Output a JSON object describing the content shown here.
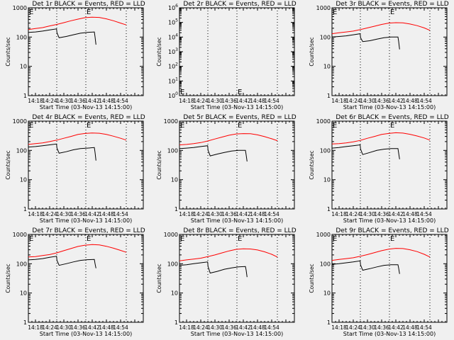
{
  "chart_data": [
    {
      "type": "line",
      "title": "Det 1r BLACK = Events, RED = LLD",
      "xlabel": "Start Time (03-Nov-13 14:15:00)",
      "ylabel": "Counts/sec",
      "yscale": "log",
      "ylim": [
        1,
        1000
      ],
      "ytick_labels": [
        "1",
        "10",
        "100",
        "1000"
      ],
      "xtick_labels": [
        "14:18",
        "14:24",
        "14:30",
        "14:36",
        "14:42",
        "14:48",
        "14:54"
      ],
      "xlim_minutes": [
        0,
        48.6
      ],
      "vlines_minutes": [
        12,
        24.3,
        41.4
      ],
      "markers": [
        {
          "label": "E",
          "x_min": 0,
          "y": 1000
        },
        {
          "label": "E",
          "x_min": 24.3,
          "y": 1000
        }
      ],
      "series": [
        {
          "name": "LLD",
          "color": "#ff0000",
          "x": [
            0,
            3,
            6,
            9,
            12,
            15,
            18,
            21,
            24,
            27,
            30,
            33,
            36,
            39,
            41.4
          ],
          "values": [
            180,
            195,
            210,
            240,
            270,
            310,
            360,
            410,
            460,
            480,
            470,
            420,
            360,
            300,
            260
          ]
        },
        {
          "name": "Events",
          "color": "#000000",
          "x": [
            0,
            3,
            6,
            9,
            11.9,
            12.1,
            13,
            16,
            19,
            22,
            25,
            27.9,
            28.2,
            28.6
          ],
          "values": [
            145,
            150,
            160,
            175,
            190,
            140,
            95,
            105,
            120,
            135,
            145,
            150,
            100,
            55
          ]
        }
      ]
    },
    {
      "type": "line",
      "title": "Det 2r BLACK = Events, RED = LLD",
      "xlabel": "Start Time (03-Nov-13 14:15:00)",
      "ylabel": "Counts/sec",
      "yscale": "log",
      "ylim": [
        1,
        1000000
      ],
      "ytick_labels": [
        "10^0",
        "10^1",
        "10^2",
        "10^3",
        "10^4",
        "10^5",
        "10^6"
      ],
      "xtick_labels": [
        "14:18",
        "14:24",
        "14:30",
        "14:36",
        "14:42",
        "14:48",
        "14:54"
      ],
      "xlim_minutes": [
        0,
        48.6
      ],
      "vlines_minutes": [
        12,
        24.3,
        41.4
      ],
      "markers": [
        {
          "label": "E",
          "x_min": 0,
          "y": 1.5
        },
        {
          "label": "E",
          "x_min": 24.3,
          "y": 1.5
        }
      ],
      "series": []
    },
    {
      "type": "line",
      "title": "Det 3r BLACK = Events, RED = LLD",
      "xlabel": "Start Time (03-Nov-13 14:15:00)",
      "ylabel": "Counts/sec",
      "yscale": "log",
      "ylim": [
        1,
        1000
      ],
      "ytick_labels": [
        "1",
        "10",
        "100",
        "1000"
      ],
      "xtick_labels": [
        "14:18",
        "14:24",
        "14:30",
        "14:36",
        "14:42",
        "14:48",
        "14:54"
      ],
      "xlim_minutes": [
        0,
        48.6
      ],
      "vlines_minutes": [
        12,
        24.3,
        41.4
      ],
      "markers": [
        {
          "label": "E",
          "x_min": 0,
          "y": 1000
        },
        {
          "label": "E",
          "x_min": 24.3,
          "y": 1000
        }
      ],
      "series": [
        {
          "name": "LLD",
          "color": "#ff0000",
          "x": [
            0,
            3,
            6,
            9,
            12,
            15,
            18,
            21,
            24,
            27,
            30,
            33,
            36,
            39,
            41.4
          ],
          "values": [
            130,
            140,
            150,
            160,
            180,
            205,
            235,
            270,
            300,
            310,
            305,
            280,
            245,
            205,
            170
          ]
        },
        {
          "name": "Events",
          "color": "#000000",
          "x": [
            0,
            3,
            6,
            9,
            11.9,
            12.1,
            13,
            16,
            19,
            22,
            25,
            27.9,
            28.2,
            28.6
          ],
          "values": [
            100,
            105,
            110,
            120,
            130,
            95,
            70,
            75,
            85,
            95,
            100,
            100,
            70,
            38
          ]
        }
      ]
    },
    {
      "type": "line",
      "title": "Det 4r BLACK = Events, RED = LLD",
      "xlabel": "Start Time (03-Nov-13 14:15:00)",
      "ylabel": "Counts/sec",
      "yscale": "log",
      "ylim": [
        1,
        1000
      ],
      "ytick_labels": [
        "1",
        "10",
        "100",
        "1000"
      ],
      "xtick_labels": [
        "14:18",
        "14:24",
        "14:30",
        "14:36",
        "14:42",
        "14:48",
        "14:54"
      ],
      "xlim_minutes": [
        0,
        48.6
      ],
      "vlines_minutes": [
        12,
        24.3,
        41.4
      ],
      "markers": [
        {
          "label": "E",
          "x_min": 0,
          "y": 1000
        },
        {
          "label": "E",
          "x_min": 24.3,
          "y": 1000
        }
      ],
      "series": [
        {
          "name": "LLD",
          "color": "#ff0000",
          "x": [
            0,
            3,
            6,
            9,
            12,
            15,
            18,
            21,
            24,
            27,
            30,
            33,
            36,
            39,
            41.4
          ],
          "values": [
            160,
            170,
            180,
            200,
            225,
            260,
            300,
            350,
            380,
            395,
            385,
            350,
            305,
            260,
            225
          ]
        },
        {
          "name": "Events",
          "color": "#000000",
          "x": [
            0,
            3,
            6,
            9,
            11.9,
            12.1,
            13,
            16,
            19,
            22,
            25,
            27.9,
            28.2,
            28.6
          ],
          "values": [
            130,
            135,
            145,
            155,
            165,
            120,
            80,
            90,
            105,
            115,
            120,
            125,
            85,
            45
          ]
        }
      ]
    },
    {
      "type": "line",
      "title": "Det 5r BLACK = Events, RED = LLD",
      "xlabel": "Start Time (03-Nov-13 14:15:00)",
      "ylabel": "Counts/sec",
      "yscale": "log",
      "ylim": [
        1,
        1000
      ],
      "ytick_labels": [
        "1",
        "10",
        "100",
        "1000"
      ],
      "xtick_labels": [
        "14:18",
        "14:24",
        "14:30",
        "14:36",
        "14:42",
        "14:48",
        "14:54"
      ],
      "xlim_minutes": [
        0,
        48.6
      ],
      "vlines_minutes": [
        12,
        24.3,
        41.4
      ],
      "markers": [
        {
          "label": "E",
          "x_min": 0,
          "y": 1000
        },
        {
          "label": "E",
          "x_min": 24.3,
          "y": 1000
        }
      ],
      "series": [
        {
          "name": "LLD",
          "color": "#ff0000",
          "x": [
            0,
            3,
            6,
            9,
            12,
            15,
            18,
            21,
            24,
            27,
            30,
            33,
            36,
            39,
            41.4
          ],
          "values": [
            155,
            160,
            170,
            185,
            210,
            245,
            285,
            330,
            365,
            375,
            370,
            340,
            295,
            250,
            215
          ]
        },
        {
          "name": "Events",
          "color": "#000000",
          "x": [
            0,
            3,
            6,
            9,
            11.9,
            12.1,
            13,
            16,
            19,
            22,
            25,
            27.9,
            28.2,
            28.6
          ],
          "values": [
            115,
            120,
            125,
            135,
            145,
            100,
            65,
            75,
            85,
            95,
            100,
            100,
            70,
            42
          ]
        }
      ]
    },
    {
      "type": "line",
      "title": "Det 6r BLACK = Events, RED = LLD",
      "xlabel": "Start Time (03-Nov-13 14:15:00)",
      "ylabel": "Counts/sec",
      "yscale": "log",
      "ylim": [
        1,
        1000
      ],
      "ytick_labels": [
        "1",
        "10",
        "100",
        "1000"
      ],
      "xtick_labels": [
        "14:18",
        "14:24",
        "14:30",
        "14:36",
        "14:42",
        "14:48",
        "14:54"
      ],
      "xlim_minutes": [
        0,
        48.6
      ],
      "vlines_minutes": [
        12,
        24.3,
        41.4
      ],
      "markers": [
        {
          "label": "E",
          "x_min": 0,
          "y": 1000
        },
        {
          "label": "E",
          "x_min": 24.3,
          "y": 1000
        }
      ],
      "series": [
        {
          "name": "LLD",
          "color": "#ff0000",
          "x": [
            0,
            3,
            6,
            9,
            12,
            15,
            18,
            21,
            24,
            27,
            30,
            33,
            36,
            39,
            41.4
          ],
          "values": [
            165,
            170,
            180,
            195,
            220,
            260,
            300,
            350,
            380,
            400,
            390,
            355,
            310,
            265,
            225
          ]
        },
        {
          "name": "Events",
          "color": "#000000",
          "x": [
            0,
            3,
            6,
            9,
            11.9,
            12.1,
            13,
            16,
            19,
            22,
            25,
            27.9,
            28.2,
            28.6
          ],
          "values": [
            120,
            125,
            135,
            145,
            155,
            110,
            72,
            85,
            100,
            110,
            115,
            115,
            80,
            50
          ]
        }
      ]
    },
    {
      "type": "line",
      "title": "Det 7r BLACK = Events, RED = LLD",
      "xlabel": "Start Time (03-Nov-13 14:15:00)",
      "ylabel": "Counts/sec",
      "yscale": "log",
      "ylim": [
        1,
        1000
      ],
      "ytick_labels": [
        "1",
        "10",
        "100",
        "1000"
      ],
      "xtick_labels": [
        "14:18",
        "14:24",
        "14:30",
        "14:36",
        "14:42",
        "14:48",
        "14:54"
      ],
      "xlim_minutes": [
        0,
        48.6
      ],
      "vlines_minutes": [
        12,
        24.3,
        41.4
      ],
      "markers": [
        {
          "label": "E",
          "x_min": 0,
          "y": 1000
        },
        {
          "label": "E",
          "x_min": 24.3,
          "y": 1000
        }
      ],
      "series": [
        {
          "name": "LLD",
          "color": "#ff0000",
          "x": [
            0,
            3,
            6,
            9,
            12,
            15,
            18,
            21,
            24,
            27,
            30,
            33,
            36,
            39,
            41.4
          ],
          "values": [
            170,
            175,
            190,
            205,
            235,
            280,
            330,
            390,
            430,
            450,
            440,
            395,
            340,
            285,
            245
          ]
        },
        {
          "name": "Events",
          "color": "#000000",
          "x": [
            0,
            3,
            6,
            9,
            11.9,
            12.1,
            13,
            16,
            19,
            22,
            25,
            27.9,
            28.2,
            28.6
          ],
          "values": [
            135,
            140,
            150,
            165,
            180,
            130,
            88,
            100,
            115,
            130,
            138,
            140,
            100,
            70
          ]
        }
      ]
    },
    {
      "type": "line",
      "title": "Det 8r BLACK = Events, RED = LLD",
      "xlabel": "Start Time (03-Nov-13 14:15:00)",
      "ylabel": "Counts/sec",
      "yscale": "log",
      "ylim": [
        1,
        1000
      ],
      "ytick_labels": [
        "1",
        "10",
        "100",
        "1000"
      ],
      "xtick_labels": [
        "14:18",
        "14:24",
        "14:30",
        "14:36",
        "14:42",
        "14:48",
        "14:54"
      ],
      "xlim_minutes": [
        0,
        48.6
      ],
      "vlines_minutes": [
        12,
        24.3,
        41.4
      ],
      "markers": [
        {
          "label": "E",
          "x_min": 0,
          "y": 1000
        },
        {
          "label": "E",
          "x_min": 24.3,
          "y": 1000
        }
      ],
      "series": [
        {
          "name": "LLD",
          "color": "#ff0000",
          "x": [
            0,
            3,
            6,
            9,
            12,
            15,
            18,
            21,
            24,
            27,
            30,
            33,
            36,
            39,
            41.4
          ],
          "values": [
            125,
            135,
            145,
            155,
            175,
            200,
            235,
            275,
            310,
            325,
            320,
            295,
            255,
            210,
            170
          ]
        },
        {
          "name": "Events",
          "color": "#000000",
          "x": [
            0,
            3,
            6,
            9,
            11.9,
            12.1,
            13,
            16,
            19,
            22,
            25,
            27.9,
            28.2,
            28.6
          ],
          "values": [
            88,
            92,
            100,
            108,
            115,
            80,
            48,
            55,
            65,
            72,
            78,
            80,
            60,
            35
          ]
        }
      ]
    },
    {
      "type": "line",
      "title": "Det 9r BLACK = Events, RED = LLD",
      "xlabel": "Start Time (03-Nov-13 14:15:00)",
      "ylabel": "Counts/sec",
      "yscale": "log",
      "ylim": [
        1,
        1000
      ],
      "ytick_labels": [
        "1",
        "10",
        "100",
        "1000"
      ],
      "xtick_labels": [
        "14:18",
        "14:24",
        "14:30",
        "14:36",
        "14:42",
        "14:48",
        "14:54"
      ],
      "xlim_minutes": [
        0,
        48.6
      ],
      "vlines_minutes": [
        12,
        24.3,
        41.4
      ],
      "markers": [
        {
          "label": "E",
          "x_min": 0,
          "y": 1000
        },
        {
          "label": "E",
          "x_min": 24.3,
          "y": 1000
        }
      ],
      "series": [
        {
          "name": "LLD",
          "color": "#ff0000",
          "x": [
            0,
            3,
            6,
            9,
            12,
            15,
            18,
            21,
            24,
            27,
            30,
            33,
            36,
            39,
            41.4
          ],
          "values": [
            130,
            140,
            150,
            160,
            180,
            205,
            240,
            280,
            315,
            335,
            330,
            300,
            260,
            210,
            170
          ]
        },
        {
          "name": "Events",
          "color": "#000000",
          "x": [
            0,
            3,
            6,
            9,
            11.9,
            12.1,
            13,
            16,
            19,
            22,
            25,
            27.9,
            28.2,
            28.6
          ],
          "values": [
            95,
            100,
            108,
            115,
            125,
            90,
            60,
            68,
            78,
            88,
            92,
            92,
            70,
            45
          ]
        }
      ]
    }
  ]
}
